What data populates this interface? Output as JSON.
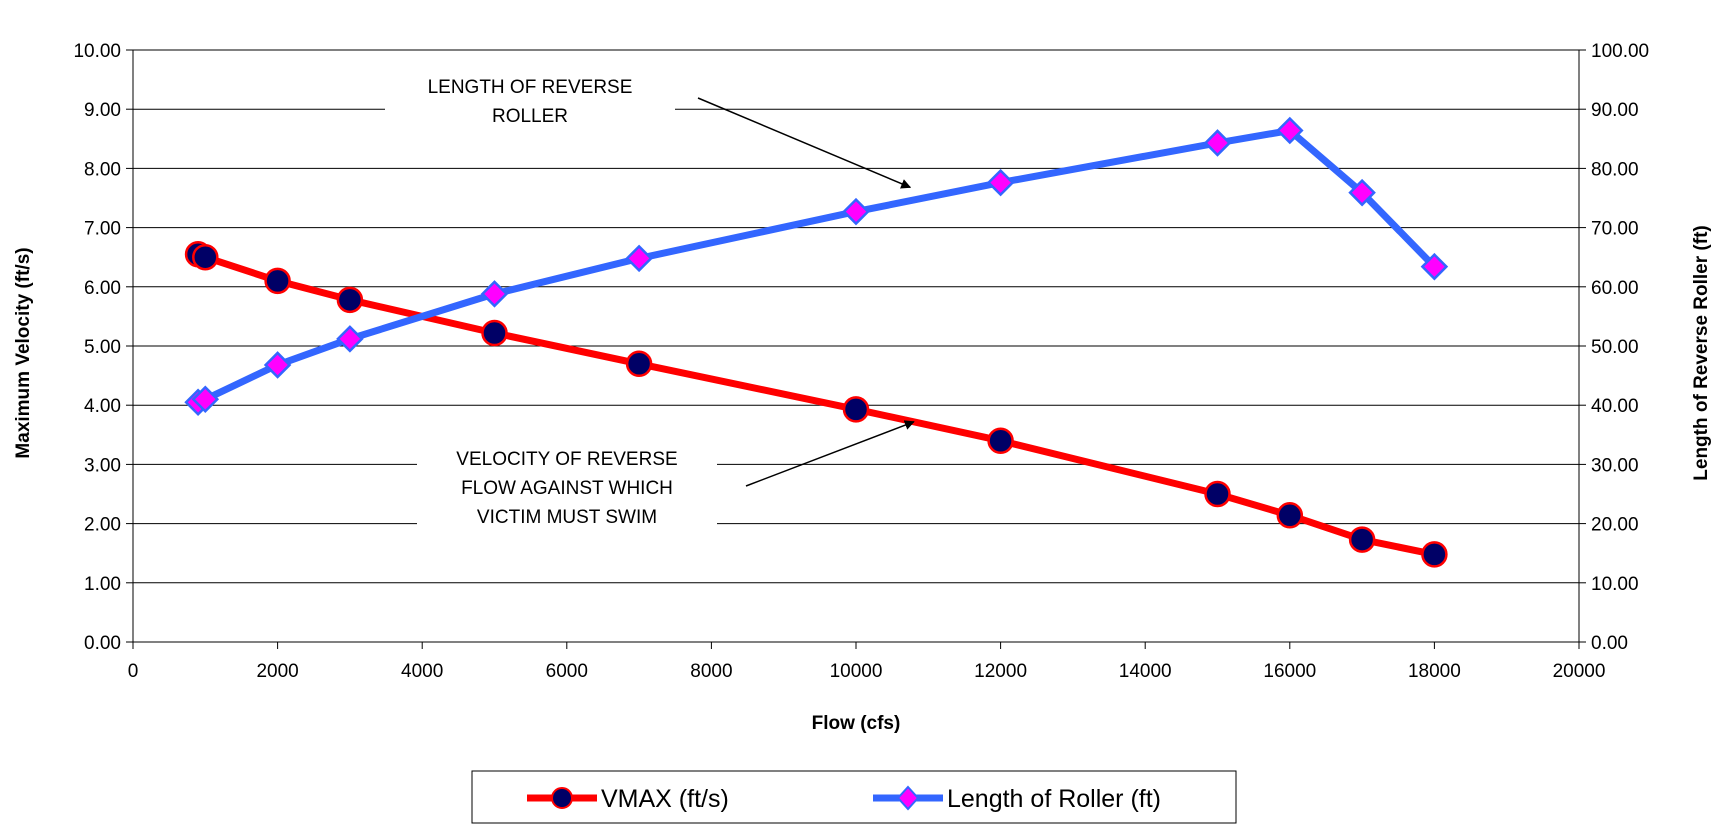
{
  "chart_data": {
    "type": "line",
    "title": "",
    "xlabel": "Flow (cfs)",
    "ylabel": "Maximum Velocity (ft/s)",
    "y2label": "Length of Reverse Roller (ft)",
    "xlim": [
      0,
      20000
    ],
    "ylim": [
      0,
      10
    ],
    "y2lim": [
      0,
      100
    ],
    "x_ticks": [
      "0",
      "2000",
      "4000",
      "6000",
      "8000",
      "10000",
      "12000",
      "14000",
      "16000",
      "18000",
      "20000"
    ],
    "y_ticks": [
      "0.00",
      "1.00",
      "2.00",
      "3.00",
      "4.00",
      "5.00",
      "6.00",
      "7.00",
      "8.00",
      "9.00",
      "10.00"
    ],
    "y2_ticks": [
      "0.00",
      "10.00",
      "20.00",
      "30.00",
      "40.00",
      "50.00",
      "60.00",
      "70.00",
      "80.00",
      "90.00",
      "100.00"
    ],
    "grid": "horizontal",
    "legend_position": "bottom",
    "series": [
      {
        "name": "VMAX (ft/s)",
        "axis": "left",
        "color": "#ff0000",
        "marker": "circle",
        "marker_color": "#000066",
        "points": [
          [
            900,
            6.55
          ],
          [
            1000,
            6.5
          ],
          [
            2000,
            6.1
          ],
          [
            3000,
            5.78
          ],
          [
            5000,
            5.22
          ],
          [
            7000,
            4.7
          ],
          [
            10000,
            3.93
          ],
          [
            12000,
            3.4
          ],
          [
            15000,
            2.5
          ],
          [
            16000,
            2.14
          ],
          [
            17000,
            1.73
          ],
          [
            18000,
            1.48
          ]
        ]
      },
      {
        "name": "Length of Roller (ft)",
        "axis": "right",
        "color": "#3366ff",
        "marker": "diamond",
        "marker_color": "#ff00ff",
        "points": [
          [
            900,
            40.5
          ],
          [
            1000,
            41.0
          ],
          [
            2000,
            46.8
          ],
          [
            3000,
            51.2
          ],
          [
            5000,
            58.8
          ],
          [
            7000,
            64.8
          ],
          [
            10000,
            72.7
          ],
          [
            12000,
            77.6
          ],
          [
            15000,
            84.3
          ],
          [
            16000,
            86.4
          ],
          [
            17000,
            75.9
          ],
          [
            18000,
            63.4
          ]
        ]
      }
    ],
    "annotations": [
      {
        "lines": [
          "LENGTH OF REVERSE",
          "ROLLER"
        ],
        "arrow_to": [
          10750,
          7.68
        ]
      },
      {
        "lines": [
          "VELOCITY OF REVERSE",
          "FLOW AGAINST WHICH",
          "VICTIM MUST SWIM"
        ],
        "arrow_to": [
          10800,
          3.72
        ]
      }
    ]
  }
}
